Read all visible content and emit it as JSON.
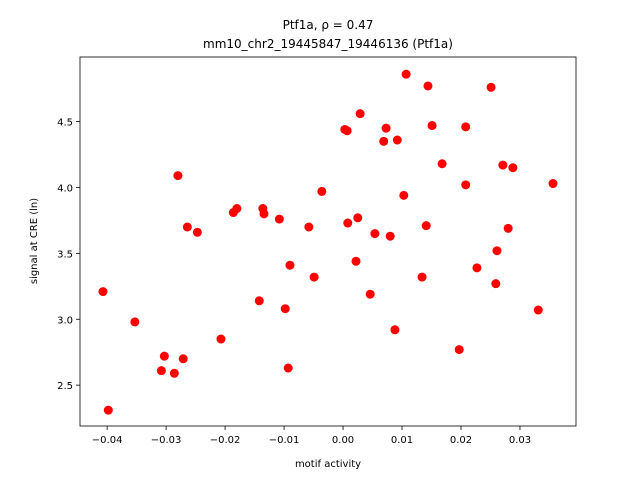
{
  "chart_data": {
    "type": "scatter",
    "title": "Ptf1a, ρ = 0.47",
    "subtitle": "mm10_chr2_19445847_19446136 (Ptf1a)",
    "xlabel": "motif activity",
    "ylabel": "signal at CRE (ln)",
    "color": "#ff0000",
    "x": [
      -0.0407,
      -0.0398,
      -0.0353,
      -0.0303,
      -0.0308,
      -0.0286,
      -0.028,
      -0.0271,
      -0.0264,
      -0.0247,
      -0.0207,
      -0.0186,
      -0.018,
      -0.0142,
      -0.0136,
      -0.0134,
      -0.0108,
      -0.0098,
      -0.0093,
      -0.009,
      -0.0058,
      -0.0049,
      -0.0036,
      0.0003,
      0.0007,
      0.0008,
      0.0022,
      0.0025,
      0.0029,
      0.0046,
      0.0054,
      0.0069,
      0.0073,
      0.008,
      0.0088,
      0.0092,
      0.0103,
      0.0107,
      0.0134,
      0.0141,
      0.0144,
      0.0151,
      0.0168,
      0.0197,
      0.0208,
      0.0208,
      0.0227,
      0.0251,
      0.0259,
      0.0261,
      0.0271,
      0.028,
      0.0288,
      0.0331,
      0.0356
    ],
    "y": [
      3.21,
      2.31,
      2.98,
      2.72,
      2.61,
      2.59,
      4.09,
      2.7,
      3.7,
      3.66,
      2.85,
      3.81,
      3.84,
      3.14,
      3.84,
      3.8,
      3.76,
      3.08,
      2.63,
      3.41,
      3.7,
      3.32,
      3.97,
      4.44,
      4.43,
      3.73,
      3.44,
      3.77,
      4.56,
      3.19,
      3.65,
      4.35,
      4.45,
      3.63,
      2.92,
      4.36,
      3.94,
      4.86,
      3.32,
      3.71,
      4.77,
      4.47,
      4.18,
      2.77,
      4.46,
      4.02,
      3.39,
      4.76,
      3.27,
      3.52,
      4.17,
      3.69,
      4.15,
      3.07,
      4.03
    ],
    "xlim": [
      -0.0446,
      0.0395
    ],
    "ylim": [
      2.19,
      4.99
    ],
    "xticks": [
      {
        "value": -0.04,
        "label": "−0.04"
      },
      {
        "value": -0.03,
        "label": "−0.03"
      },
      {
        "value": -0.02,
        "label": "−0.02"
      },
      {
        "value": -0.01,
        "label": "−0.01"
      },
      {
        "value": 0,
        "label": "0.00"
      },
      0.01,
      0.02,
      0.03
    ],
    "yticks": [
      2.5,
      {
        "value": 3,
        "label": "3.0"
      },
      3.5,
      {
        "value": 4,
        "label": "4.0"
      },
      4.5
    ]
  }
}
